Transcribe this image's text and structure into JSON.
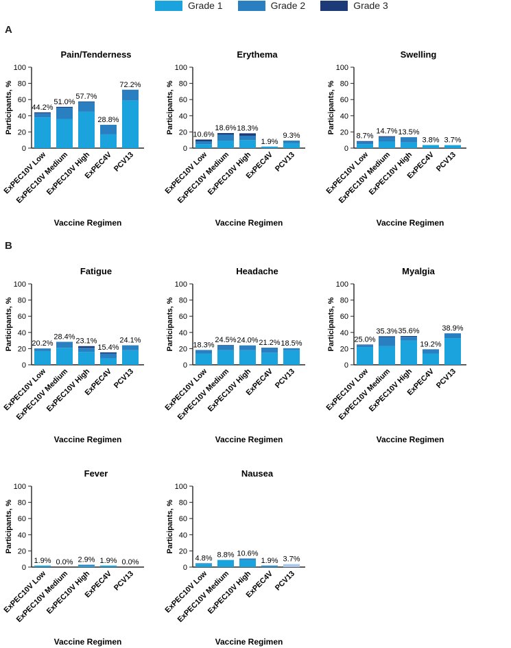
{
  "legend": [
    {
      "label": "Grade 1",
      "color": "#1aa3dc"
    },
    {
      "label": "Grade 2",
      "color": "#2a7fc1"
    },
    {
      "label": "Grade 3",
      "color": "#1c3a78"
    }
  ],
  "panel_labels": {
    "a": "A",
    "b": "B"
  },
  "chart_data": [
    {
      "type": "bar",
      "stacked": true,
      "title": "Pain/Tenderness",
      "xlabel": "Vaccine Regimen",
      "ylabel": "Participants, %",
      "ylim": [
        0,
        100
      ],
      "yticks": [
        0,
        20,
        40,
        60,
        80,
        100
      ],
      "categories": [
        "ExPEC10V Low",
        "ExPEC10V Medium",
        "ExPEC10V High",
        "ExPEC4V",
        "PCV13"
      ],
      "series": [
        {
          "name": "Grade 1",
          "values": [
            38,
            36,
            45,
            17,
            59
          ]
        },
        {
          "name": "Grade 2",
          "values": [
            5,
            14,
            12,
            11.8,
            13.2
          ]
        },
        {
          "name": "Grade 3",
          "values": [
            1.2,
            1,
            0.7,
            0,
            0
          ]
        }
      ],
      "labels": [
        "44.2%",
        "51.0%",
        "57.7%",
        "28.8%",
        "72.2%"
      ]
    },
    {
      "type": "bar",
      "stacked": true,
      "title": "Erythema",
      "xlabel": "Vaccine Regimen",
      "ylabel": "Participants, %",
      "ylim": [
        0,
        100
      ],
      "yticks": [
        0,
        20,
        40,
        60,
        80,
        100
      ],
      "categories": [
        "ExPEC10V Low",
        "ExPEC10V Medium",
        "ExPEC10V High",
        "ExPEC4V",
        "PCV13"
      ],
      "series": [
        {
          "name": "Grade 1",
          "values": [
            5,
            9,
            10,
            1.9,
            6
          ]
        },
        {
          "name": "Grade 2",
          "values": [
            3.5,
            7.6,
            5.3,
            0,
            3.3
          ]
        },
        {
          "name": "Grade 3",
          "values": [
            2.1,
            2,
            3,
            0,
            0
          ]
        }
      ],
      "labels": [
        "10.6%",
        "18.6%",
        "18.3%",
        "1.9%",
        "9.3%"
      ]
    },
    {
      "type": "bar",
      "stacked": true,
      "title": "Swelling",
      "xlabel": "Vaccine Regimen",
      "ylabel": "Participants, %",
      "ylim": [
        0,
        100
      ],
      "yticks": [
        0,
        20,
        40,
        60,
        80,
        100
      ],
      "categories": [
        "ExPEC10V Low",
        "ExPEC10V Medium",
        "ExPEC10V High",
        "ExPEC4V",
        "PCV13"
      ],
      "series": [
        {
          "name": "Grade 1",
          "values": [
            5,
            8,
            7,
            3.8,
            3.7
          ]
        },
        {
          "name": "Grade 2",
          "values": [
            3,
            5.7,
            6.5,
            0,
            0
          ]
        },
        {
          "name": "Grade 3",
          "values": [
            0.7,
            1,
            0,
            0,
            0
          ]
        }
      ],
      "labels": [
        "8.7%",
        "14.7%",
        "13.5%",
        "3.8%",
        "3.7%"
      ]
    },
    {
      "type": "bar",
      "stacked": true,
      "title": "Fatigue",
      "xlabel": "Vaccine Regimen",
      "ylabel": "Participants, %",
      "ylim": [
        0,
        100
      ],
      "yticks": [
        0,
        20,
        40,
        60,
        80,
        100
      ],
      "categories": [
        "ExPEC10V Low",
        "ExPEC10V Medium",
        "ExPEC10V High",
        "ExPEC4V",
        "PCV13"
      ],
      "series": [
        {
          "name": "Grade 1",
          "values": [
            17,
            21,
            16,
            8,
            18
          ]
        },
        {
          "name": "Grade 2",
          "values": [
            3.2,
            7.4,
            5,
            6,
            6.1
          ]
        },
        {
          "name": "Grade 3",
          "values": [
            0,
            0,
            2.1,
            1.4,
            0
          ]
        }
      ],
      "labels": [
        "20.2%",
        "28.4%",
        "23.1%",
        "15.4%",
        "24.1%"
      ]
    },
    {
      "type": "bar",
      "stacked": true,
      "title": "Headache",
      "xlabel": "Vaccine Regimen",
      "ylabel": "Participants, %",
      "ylim": [
        0,
        100
      ],
      "yticks": [
        0,
        20,
        40,
        60,
        80,
        100
      ],
      "categories": [
        "ExPEC10V Low",
        "ExPEC10V Medium",
        "ExPEC10V High",
        "ExPEC4V",
        "PCV13"
      ],
      "series": [
        {
          "name": "Grade 1",
          "values": [
            14,
            18,
            18,
            15,
            18
          ]
        },
        {
          "name": "Grade 2",
          "values": [
            4.3,
            6,
            6,
            6.2,
            2.5
          ]
        },
        {
          "name": "Grade 3",
          "values": [
            0,
            0.5,
            0,
            0,
            0
          ]
        }
      ],
      "labels": [
        "18.3%",
        "24.5%",
        "24.0%",
        "21.2%",
        "18.5%"
      ]
    },
    {
      "type": "bar",
      "stacked": true,
      "title": "Myalgia",
      "xlabel": "Vaccine Regimen",
      "ylabel": "Participants, %",
      "ylim": [
        0,
        100
      ],
      "yticks": [
        0,
        20,
        40,
        60,
        80,
        100
      ],
      "categories": [
        "ExPEC10V Low",
        "ExPEC10V Medium",
        "ExPEC10V High",
        "ExPEC4V",
        "PCV13"
      ],
      "series": [
        {
          "name": "Grade 1",
          "values": [
            22,
            23,
            30,
            14,
            33
          ]
        },
        {
          "name": "Grade 2",
          "values": [
            2.5,
            11.3,
            4.6,
            5.2,
            5.9
          ]
        },
        {
          "name": "Grade 3",
          "values": [
            0.5,
            1,
            1,
            0,
            0
          ]
        }
      ],
      "labels": [
        "25.0%",
        "35.3%",
        "35.6%",
        "19.2%",
        "38.9%"
      ]
    },
    {
      "type": "bar",
      "stacked": true,
      "title": "Fever",
      "xlabel": "Vaccine Regimen",
      "ylabel": "Participants, %",
      "ylim": [
        0,
        100
      ],
      "yticks": [
        0,
        20,
        40,
        60,
        80,
        100
      ],
      "categories": [
        "ExPEC10V Low",
        "ExPEC10V Medium",
        "ExPEC10V High",
        "ExPEC4V",
        "PCV13"
      ],
      "series": [
        {
          "name": "Grade 1",
          "values": [
            1.9,
            0,
            1.5,
            1.9,
            0
          ]
        },
        {
          "name": "Grade 2",
          "values": [
            0,
            0,
            1.4,
            0,
            0
          ]
        },
        {
          "name": "Grade 3",
          "values": [
            0,
            0,
            0,
            0,
            0
          ]
        }
      ],
      "labels": [
        "1.9%",
        "0.0%",
        "2.9%",
        "1.9%",
        "0.0%"
      ]
    },
    {
      "type": "bar",
      "stacked": true,
      "title": "Nausea",
      "xlabel": "Vaccine Regimen",
      "ylabel": "Participants, %",
      "ylim": [
        0,
        100
      ],
      "yticks": [
        0,
        20,
        40,
        60,
        80,
        100
      ],
      "categories": [
        "ExPEC10V Low",
        "ExPEC10V Medium",
        "ExPEC10V High",
        "ExPEC4V",
        "PCV13"
      ],
      "series": [
        {
          "name": "Grade 1",
          "values": [
            4,
            8.8,
            8.6,
            0.9,
            3.7
          ]
        },
        {
          "name": "Grade 2",
          "values": [
            0.8,
            0,
            2,
            1,
            0
          ]
        },
        {
          "name": "Grade 3",
          "values": [
            0,
            0,
            0,
            0,
            0
          ]
        }
      ],
      "labels": [
        "4.8%",
        "8.8%",
        "10.6%",
        "1.9%",
        "3.7%"
      ]
    }
  ]
}
